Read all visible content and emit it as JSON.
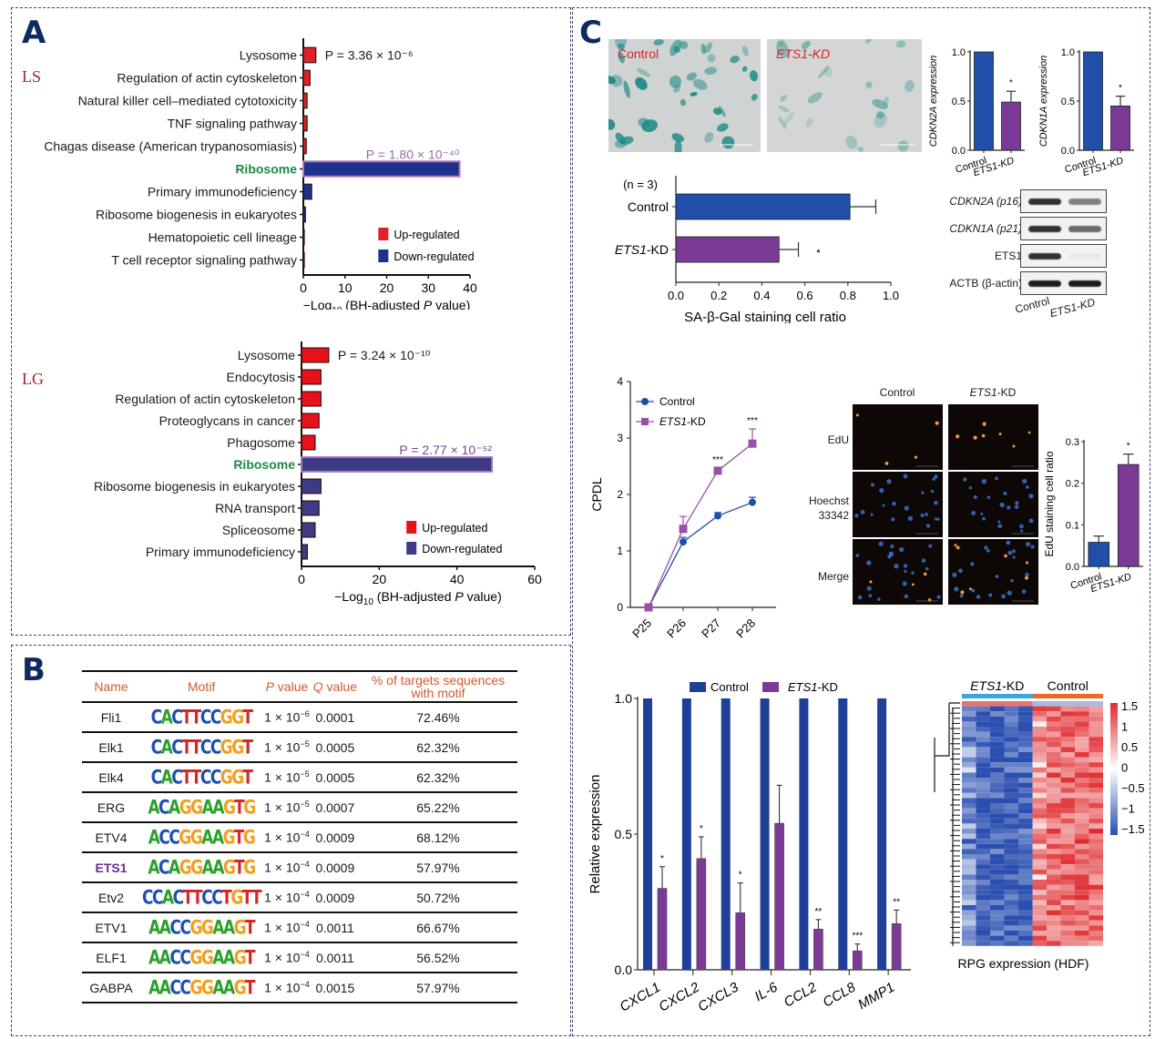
{
  "panels": {
    "A": "A",
    "B": "B",
    "C": "C"
  },
  "panelA": {
    "ls_label": "LS",
    "lg_label": "LG",
    "legend": {
      "up": "Up-regulated",
      "down": "Down-regulated"
    },
    "xlabel_prefix": "−Log",
    "xlabel_sub": "10",
    "xlabel_suffix": " (BH-adjusted ",
    "xlabel_p": "P",
    "xlabel_end": " value)"
  },
  "chart_data": [
    {
      "id": "A-LS",
      "type": "bar",
      "orientation": "horizontal",
      "group_label": "LS",
      "categories": [
        "Lysosome",
        "Regulation of actin cytoskeleton",
        "Natural killer cell–mediated cytotoxicity",
        "TNF signaling pathway",
        "Chagas disease (American trypanosomiasis)",
        "Ribosome",
        "Primary immunodeficiency",
        "Ribosome biogenesis in eukaryotes",
        "Hematopoietic cell lineage",
        "T cell receptor signaling pathway"
      ],
      "values": [
        3.0,
        1.6,
        0.9,
        0.9,
        0.7,
        37.5,
        2.0,
        0.5,
        0.1,
        0.1
      ],
      "regulation": [
        "up",
        "up",
        "up",
        "up",
        "up",
        "down",
        "down",
        "down",
        "down",
        "down"
      ],
      "xlim": [
        0,
        40
      ],
      "xticks": [
        "0",
        "10",
        "20",
        "30",
        "40"
      ],
      "xlabel": "−Log10 (BH-adjusted P value)",
      "annotations": [
        {
          "text": "P = 3.36 × 10⁻⁶",
          "category": "Lysosome"
        },
        {
          "text": "P = 1.80 × 10⁻⁴⁰",
          "category": "Ribosome"
        }
      ],
      "legend": [
        "Up-regulated",
        "Down-regulated"
      ],
      "colors": {
        "up": "#e02228",
        "down": "#1f2f8c"
      }
    },
    {
      "id": "A-LG",
      "type": "bar",
      "orientation": "horizontal",
      "group_label": "LG",
      "categories": [
        "Lysosome",
        "Endocytosis",
        "Regulation of actin cytoskeleton",
        "Proteoglycans in cancer",
        "Phagosome",
        "Ribosome",
        "Ribosome biogenesis in eukaryotes",
        "RNA transport",
        "Spliceosome",
        "Primary immunodeficiency"
      ],
      "values": [
        7.0,
        5.0,
        5.0,
        4.5,
        3.5,
        49.0,
        5.0,
        4.5,
        3.5,
        1.5
      ],
      "regulation": [
        "up",
        "up",
        "up",
        "up",
        "up",
        "down",
        "down",
        "down",
        "down",
        "down"
      ],
      "xlim": [
        0,
        60
      ],
      "xticks": [
        "0",
        "20",
        "40",
        "60"
      ],
      "xlabel": "−Log10 (BH-adjusted P value)",
      "annotations": [
        {
          "text": "P = 3.24 × 10⁻¹⁰",
          "category": "Lysosome"
        },
        {
          "text": "P = 2.77 × 10⁻⁵²",
          "category": "Ribosome"
        }
      ],
      "legend": [
        "Up-regulated",
        "Down-regulated"
      ],
      "colors": {
        "up": "#e8101a",
        "down": "#3d3a86"
      }
    },
    {
      "id": "B-motif-table",
      "type": "table",
      "columns": [
        "Name",
        "Motif",
        "P value",
        "Q value",
        "% of targets sequences with motif"
      ],
      "rows": [
        {
          "name": "Fli1",
          "motif": "CACTTCCGGT",
          "p": "1 × 10",
          "pexp": "−6",
          "q": "0.0001",
          "pct": "72.46%"
        },
        {
          "name": "Elk1",
          "motif": "CACTTCCGGT",
          "p": "1 × 10",
          "pexp": "−5",
          "q": "0.0005",
          "pct": "62.32%"
        },
        {
          "name": "Elk4",
          "motif": "CACTTCCGGT",
          "p": "1 × 10",
          "pexp": "−5",
          "q": "0.0005",
          "pct": "62.32%"
        },
        {
          "name": "ERG",
          "motif": "ACAGGAAGTG",
          "p": "1 × 10",
          "pexp": "−5",
          "q": "0.0007",
          "pct": "65.22%"
        },
        {
          "name": "ETV4",
          "motif": "ACCGGAAGTG",
          "p": "1 × 10",
          "pexp": "−4",
          "q": "0.0009",
          "pct": "68.12%"
        },
        {
          "name": "ETS1",
          "motif": "ACAGGAAGTG",
          "p": "1 × 10",
          "pexp": "−4",
          "q": "0.0009",
          "pct": "57.97%"
        },
        {
          "name": "Etv2",
          "motif": "CCACTTCCTGTT",
          "p": "1 × 10",
          "pexp": "−4",
          "q": "0.0009",
          "pct": "50.72%"
        },
        {
          "name": "ETV1",
          "motif": "AACCGGAAGT",
          "p": "1 × 10",
          "pexp": "−4",
          "q": "0.0011",
          "pct": "66.67%"
        },
        {
          "name": "ELF1",
          "motif": "AACCGGAAGT",
          "p": "1 × 10",
          "pexp": "−4",
          "q": "0.0011",
          "pct": "56.52%"
        },
        {
          "name": "GABPA",
          "motif": "AACCGGAAGT",
          "p": "1 × 10",
          "pexp": "−4",
          "q": "0.0015",
          "pct": "57.97%"
        }
      ]
    },
    {
      "id": "C-sagal",
      "type": "bar",
      "orientation": "horizontal",
      "note": "(n = 3)",
      "categories": [
        "Control",
        "ETS1-KD"
      ],
      "values": [
        0.81,
        0.48
      ],
      "errors": [
        0.12,
        0.09
      ],
      "significance": [
        "",
        "*"
      ],
      "xlim": [
        0,
        1.0
      ],
      "xticks": [
        "0.0",
        "0.2",
        "0.4",
        "0.6",
        "0.8",
        "1.0"
      ],
      "xlabel": "SA-β-Gal staining cell ratio",
      "colors": [
        "#1f4fa8",
        "#7b3a96"
      ]
    },
    {
      "id": "C-cdkn2a",
      "type": "bar",
      "categories": [
        "Control",
        "ETS1-KD"
      ],
      "values": [
        1.0,
        0.49
      ],
      "errors": [
        0,
        0.11
      ],
      "significance": [
        "",
        "*"
      ],
      "ylim": [
        0,
        1.0
      ],
      "yticks": [
        "0.0",
        "0.5",
        "1.0"
      ],
      "ylabel": "CDKN2A expression",
      "colors": [
        "#1f4fa8",
        "#7b3a96"
      ]
    },
    {
      "id": "C-cdkn1a",
      "type": "bar",
      "categories": [
        "Control",
        "ETS1-KD"
      ],
      "values": [
        1.0,
        0.45
      ],
      "errors": [
        0,
        0.1
      ],
      "significance": [
        "",
        "*"
      ],
      "ylim": [
        0,
        1.0
      ],
      "yticks": [
        "0.0",
        "0.5",
        "1.0"
      ],
      "ylabel": "CDKN1A expression",
      "colors": [
        "#1f4fa8",
        "#7b3a96"
      ]
    },
    {
      "id": "C-cpdl",
      "type": "line",
      "x": [
        "P25",
        "P26",
        "P27",
        "P28"
      ],
      "series": [
        {
          "name": "Control",
          "values": [
            0,
            1.16,
            1.62,
            1.86
          ],
          "errors": [
            0,
            0.08,
            0.06,
            0.09
          ],
          "marker": "circle",
          "color": "#1f4fa8"
        },
        {
          "name": "ETS1-KD",
          "values": [
            0,
            1.39,
            2.42,
            2.9
          ],
          "errors": [
            0,
            0.22,
            0.05,
            0.26
          ],
          "marker": "square",
          "color": "#9a4fa8"
        }
      ],
      "significance": [
        "",
        "",
        "***",
        "***"
      ],
      "ylim": [
        0,
        4
      ],
      "yticks": [
        "0",
        "1",
        "2",
        "3",
        "4"
      ],
      "ylabel": "CPDL",
      "legend": "top-left"
    },
    {
      "id": "C-edu",
      "type": "bar",
      "categories": [
        "Control",
        "ETS1-KD"
      ],
      "values": [
        0.058,
        0.245
      ],
      "errors": [
        0.015,
        0.025
      ],
      "significance": [
        "",
        "*"
      ],
      "ylim": [
        0,
        0.3
      ],
      "yticks": [
        "0.0",
        "0.1",
        "0.2",
        "0.3"
      ],
      "ylabel": "EdU staining cell ratio",
      "colors": [
        "#1f4fa8",
        "#7b3a96"
      ]
    },
    {
      "id": "C-sasp",
      "type": "bar",
      "categories": [
        "CXCL1",
        "CXCL2",
        "CXCL3",
        "IL-6",
        "CCL2",
        "CCL8",
        "MMP1"
      ],
      "series": [
        {
          "name": "Control",
          "values": [
            1,
            1,
            1,
            1,
            1,
            1,
            1
          ],
          "color": "#1f3f99"
        },
        {
          "name": "ETS1-KD",
          "values": [
            0.3,
            0.41,
            0.21,
            0.54,
            0.15,
            0.07,
            0.17
          ],
          "errors": [
            0.08,
            0.08,
            0.11,
            0.14,
            0.035,
            0.025,
            0.05
          ],
          "color": "#7b3a96"
        }
      ],
      "significance": [
        "*",
        "*",
        "*",
        "",
        "**",
        "***",
        "**"
      ],
      "ylim": [
        0,
        1.0
      ],
      "yticks": [
        "0.0",
        "0.5",
        "1.0"
      ],
      "ylabel": "Relative expression",
      "legend": "top"
    },
    {
      "id": "C-heatmap",
      "type": "heatmap",
      "column_groups": [
        {
          "name": "ETS1-KD",
          "n": 5,
          "color": "#3aa6dd"
        },
        {
          "name": "Control",
          "n": 5,
          "color": "#e66a2a"
        }
      ],
      "colorbar": {
        "ticks": [
          "1.5",
          "1",
          "0.5",
          "0",
          "−0.5",
          "−1",
          "−1.5"
        ],
        "range": [
          -1.5,
          1.5
        ],
        "low": "#2a4fb0",
        "mid": "#ffffff",
        "high": "#e02a2e"
      },
      "xlabel": "RPG expression (HDF)",
      "pattern": "ETS1-KD columns mostly low (blue), Control columns mostly high (red)"
    }
  ],
  "panelC": {
    "micro_control": "Control",
    "micro_kd": "ETS1-KD",
    "blot": {
      "rows": [
        "CDKN2A (p16)",
        "CDKN1A (p21)",
        "ETS1",
        "ACTB (β-actin)"
      ],
      "lanes": [
        "Control",
        "ETS1-KD"
      ],
      "intensity_control": [
        0.85,
        0.85,
        0.85,
        0.95
      ],
      "intensity_kd": [
        0.5,
        0.6,
        0.03,
        0.95
      ]
    },
    "edu_imgs": {
      "col1": "Control",
      "col2": "ETS1-KD",
      "row1": "EdU",
      "row2a": "Hoechst",
      "row2b": "33342",
      "row3": "Merge"
    }
  }
}
